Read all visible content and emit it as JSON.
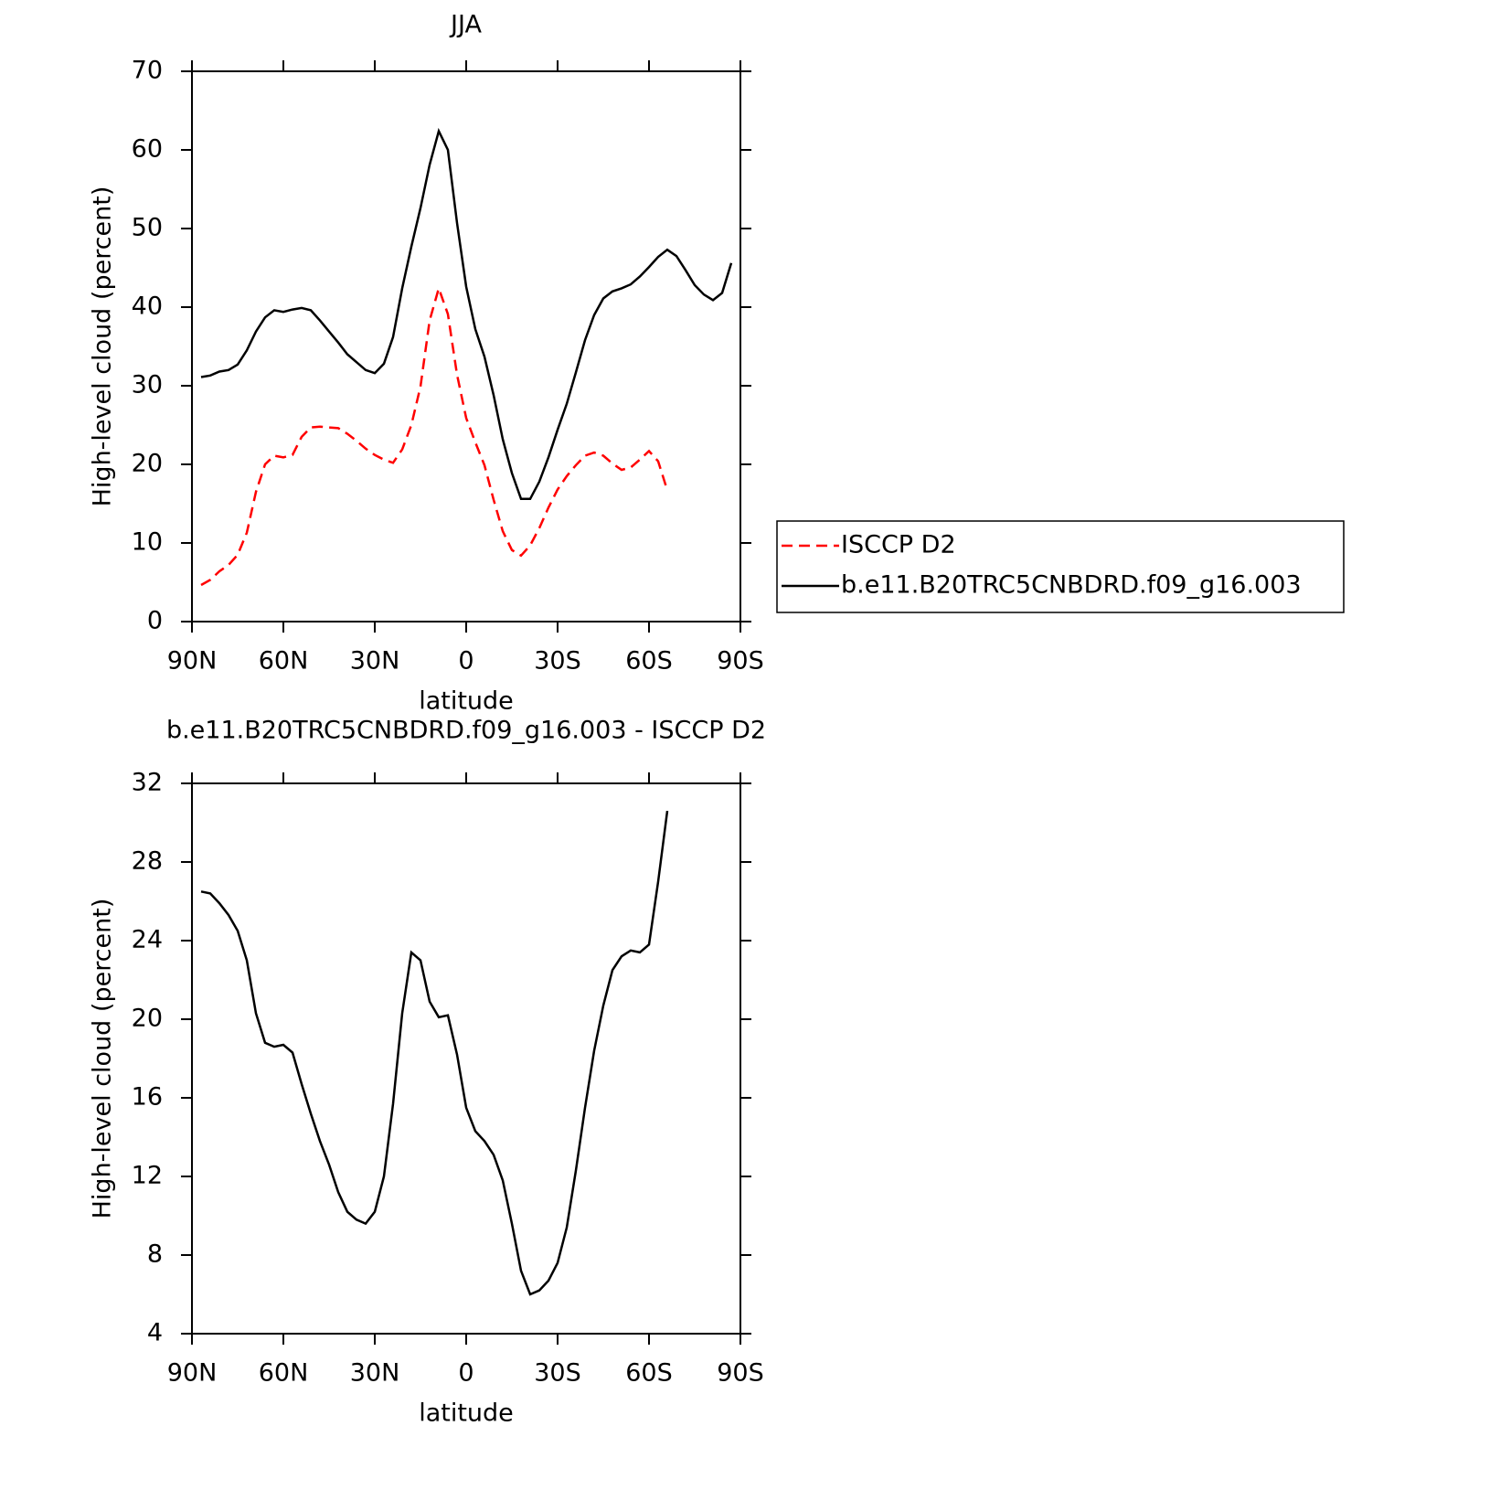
{
  "chart_data": [
    {
      "type": "line",
      "title": "JJA",
      "x_label": "latitude",
      "y_label": "High-level cloud (percent)",
      "x": [
        87,
        84,
        81,
        78,
        75,
        72,
        69,
        66,
        63,
        60,
        57,
        54,
        51,
        48,
        45,
        42,
        39,
        36,
        33,
        30,
        27,
        24,
        21,
        18,
        15,
        12,
        9,
        6,
        3,
        0,
        -3,
        -6,
        -9,
        -12,
        -15,
        -18,
        -21,
        -24,
        -27,
        -30,
        -33,
        -36,
        -39,
        -42,
        -45,
        -48,
        -51,
        -54,
        -57,
        -60,
        -63,
        -66,
        -69,
        -72,
        -75,
        -78,
        -81,
        -84,
        -87
      ],
      "series": [
        {
          "name": "ISCCP D2",
          "color": "#ff0000",
          "dashed": true,
          "values": [
            4.65,
            5.3,
            6.4,
            7.2,
            8.5,
            11.3,
            16.5,
            20.0,
            21.1,
            20.9,
            21.2,
            23.5,
            24.7,
            24.8,
            24.7,
            24.6,
            23.9,
            23.0,
            22.0,
            21.2,
            20.6,
            20.2,
            21.9,
            25.0,
            29.9,
            38.3,
            42.4,
            39.1,
            31.4,
            25.9,
            22.8,
            19.9,
            15.5,
            11.5,
            9.1,
            8.4,
            9.7,
            11.9,
            14.5,
            16.8,
            18.5,
            19.9,
            21.1,
            21.5,
            21.1,
            20.1,
            19.3,
            19.6,
            20.6,
            21.7,
            20.4,
            16.7,
            null,
            null,
            null,
            null,
            null,
            null,
            null
          ]
        },
        {
          "name": "b.e11.B20TRC5CNBDRD.f09_g16.003",
          "color": "#000000",
          "dashed": false,
          "values": [
            31.1,
            31.3,
            31.8,
            32.0,
            32.7,
            34.5,
            36.9,
            38.7,
            39.6,
            39.4,
            39.7,
            39.9,
            39.6,
            38.3,
            36.9,
            35.5,
            34.0,
            33.0,
            32.0,
            31.6,
            32.8,
            36.2,
            42.4,
            47.7,
            52.6,
            58.1,
            62.4,
            60.0,
            50.7,
            42.6,
            37.2,
            33.7,
            28.8,
            23.2,
            18.9,
            15.6,
            15.6,
            17.8,
            20.9,
            24.4,
            27.7,
            31.7,
            35.8,
            39.0,
            41.1,
            42.0,
            42.4,
            42.9,
            43.9,
            45.1,
            46.4,
            47.3,
            46.5,
            44.7,
            42.8,
            41.6,
            40.9,
            41.8,
            45.6
          ]
        }
      ],
      "xlim": [
        90,
        -90
      ],
      "xticks": [
        {
          "value": 90,
          "label": "90N"
        },
        {
          "value": 60,
          "label": "60N"
        },
        {
          "value": 30,
          "label": "30N"
        },
        0,
        {
          "value": -30,
          "label": "30S"
        },
        {
          "value": -60,
          "label": "60S"
        },
        {
          "value": -90,
          "label": "90S"
        }
      ],
      "ylim": [
        0,
        70
      ],
      "yticks": [
        0,
        10,
        20,
        30,
        40,
        50,
        60,
        70
      ],
      "legend": "right"
    },
    {
      "type": "line",
      "title": "b.e11.B20TRC5CNBDRD.f09_g16.003 - ISCCP D2",
      "x_label": "latitude",
      "y_label": "High-level cloud (percent)",
      "x": [
        87,
        84,
        81,
        78,
        75,
        72,
        69,
        66,
        63,
        60,
        57,
        54,
        51,
        48,
        45,
        42,
        39,
        36,
        33,
        30,
        27,
        24,
        21,
        18,
        15,
        12,
        9,
        6,
        3,
        0,
        -3,
        -6,
        -9,
        -12,
        -15,
        -18,
        -21,
        -24,
        -27,
        -30,
        -33,
        -36,
        -39,
        -42,
        -45,
        -48,
        -51,
        -54,
        -57,
        -60,
        -63,
        -66,
        -69,
        -72,
        -75,
        -78,
        -81,
        -84,
        -87
      ],
      "series": [
        {
          "color": "#000000",
          "dashed": false,
          "values": [
            26.5,
            26.4,
            25.9,
            25.3,
            24.5,
            23.0,
            20.3,
            18.8,
            18.6,
            18.7,
            18.3,
            16.7,
            15.2,
            13.8,
            12.6,
            11.2,
            10.2,
            9.8,
            9.6,
            10.2,
            12.0,
            15.7,
            20.3,
            23.4,
            23.0,
            20.9,
            20.1,
            20.2,
            18.2,
            15.5,
            14.3,
            13.8,
            13.1,
            11.8,
            9.6,
            7.2,
            6.0,
            6.2,
            6.7,
            7.6,
            9.4,
            12.3,
            15.5,
            18.4,
            20.7,
            22.5,
            23.2,
            23.5,
            23.4,
            23.8,
            27.0,
            30.6,
            null,
            null,
            null,
            null,
            null,
            null,
            null
          ]
        }
      ],
      "xlim": [
        90,
        -90
      ],
      "xticks": [
        {
          "value": 90,
          "label": "90N"
        },
        {
          "value": 60,
          "label": "60N"
        },
        {
          "value": 30,
          "label": "30N"
        },
        0,
        {
          "value": -30,
          "label": "30S"
        },
        {
          "value": -60,
          "label": "60S"
        },
        {
          "value": -90,
          "label": "90S"
        }
      ],
      "ylim": [
        4,
        32
      ],
      "yticks": [
        4,
        8,
        12,
        16,
        20,
        24,
        28,
        32
      ]
    }
  ]
}
